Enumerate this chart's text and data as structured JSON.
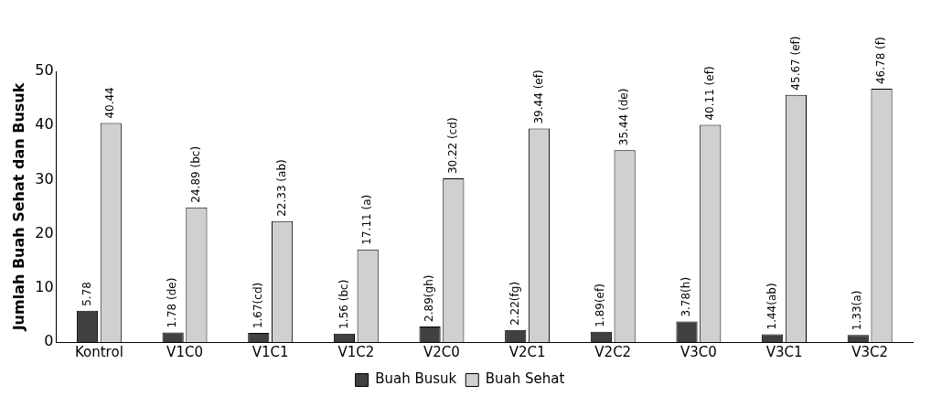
{
  "chart_data": {
    "type": "bar",
    "ylabel": "Jumlah Buah Sehat dan Busuk",
    "categories": [
      "Kontrol",
      "V1C0",
      "V1C1",
      "V1C2",
      "V2C0",
      "V2C1",
      "V2C2",
      "V3C0",
      "V3C1",
      "V3C2"
    ],
    "series": [
      {
        "name": "Buah Busuk",
        "color": "#404040",
        "values": [
          5.78,
          1.78,
          1.67,
          1.56,
          2.89,
          2.22,
          1.89,
          3.78,
          1.44,
          1.33
        ],
        "value_labels": [
          "5.78",
          "1.78 (de)",
          "1.67(cd)",
          "1.56 (bc)",
          "2.89(gh)",
          "2.22(fg)",
          "1.89(ef)",
          "3.78(h)",
          "1.44(ab)",
          "1.33(a)"
        ]
      },
      {
        "name": "Buah Sehat",
        "color": "#d0d0d0",
        "values": [
          40.44,
          24.89,
          22.33,
          17.11,
          30.22,
          39.44,
          35.44,
          40.11,
          45.67,
          46.78
        ],
        "value_labels": [
          "40.44",
          "24.89 (bc)",
          "22.33 (ab)",
          "17.11 (a)",
          "30.22 (cd)",
          "39.44 (ef)",
          "35.44 (de)",
          "40.11 (ef)",
          "45.67 (ef)",
          "46.78 (f)"
        ]
      }
    ],
    "ylim": [
      0,
      50
    ],
    "yticks": [
      0,
      10,
      20,
      30,
      40,
      50
    ],
    "grid": false,
    "legend": "bottom"
  }
}
